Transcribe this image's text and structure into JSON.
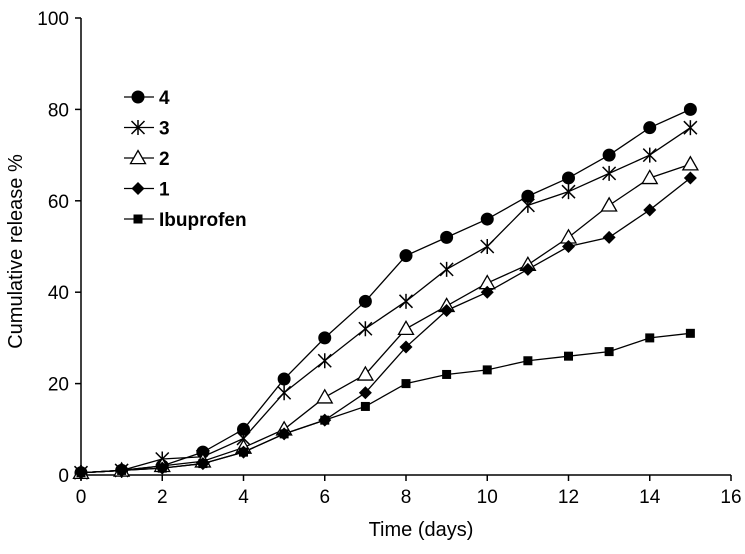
{
  "chart_data": {
    "type": "line",
    "title": "",
    "xlabel": "Time (days)",
    "ylabel": "Cumulative release %",
    "xlim": [
      0,
      16
    ],
    "ylim": [
      0,
      100
    ],
    "x_ticks": [
      0,
      2,
      4,
      6,
      8,
      10,
      12,
      14,
      16
    ],
    "y_ticks": [
      0,
      20,
      40,
      60,
      80,
      100
    ],
    "grid": false,
    "legend_position": "top-left",
    "x": [
      0,
      1,
      2,
      3,
      4,
      5,
      6,
      7,
      8,
      9,
      10,
      11,
      12,
      13,
      14,
      15
    ],
    "series": [
      {
        "name": "4",
        "marker": "filled-circle",
        "color": "#000000",
        "values": [
          0.5,
          1,
          2,
          5,
          10,
          21,
          30,
          38,
          48,
          52,
          56,
          61,
          65,
          70,
          76,
          80
        ]
      },
      {
        "name": "3",
        "marker": "asterisk",
        "color": "#000000",
        "values": [
          0.5,
          1,
          3.5,
          4,
          8,
          18,
          25,
          32,
          38,
          45,
          50,
          59,
          62,
          66,
          70,
          76
        ]
      },
      {
        "name": "2",
        "marker": "open-triangle",
        "color": "#000000",
        "values": [
          0.5,
          1,
          2,
          3,
          6,
          10,
          17,
          22,
          32,
          37,
          42,
          46,
          52,
          59,
          65,
          68
        ]
      },
      {
        "name": "1",
        "marker": "filled-diamond",
        "color": "#000000",
        "values": [
          0.5,
          1,
          1.5,
          2.5,
          5,
          9,
          12,
          18,
          28,
          36,
          40,
          45,
          50,
          52,
          58,
          65
        ]
      },
      {
        "name": "Ibuprofen",
        "marker": "filled-square",
        "color": "#000000",
        "values": [
          0.5,
          1,
          1.5,
          2.5,
          5,
          9,
          12,
          15,
          20,
          22,
          23,
          25,
          26,
          27,
          30,
          31
        ]
      }
    ]
  }
}
